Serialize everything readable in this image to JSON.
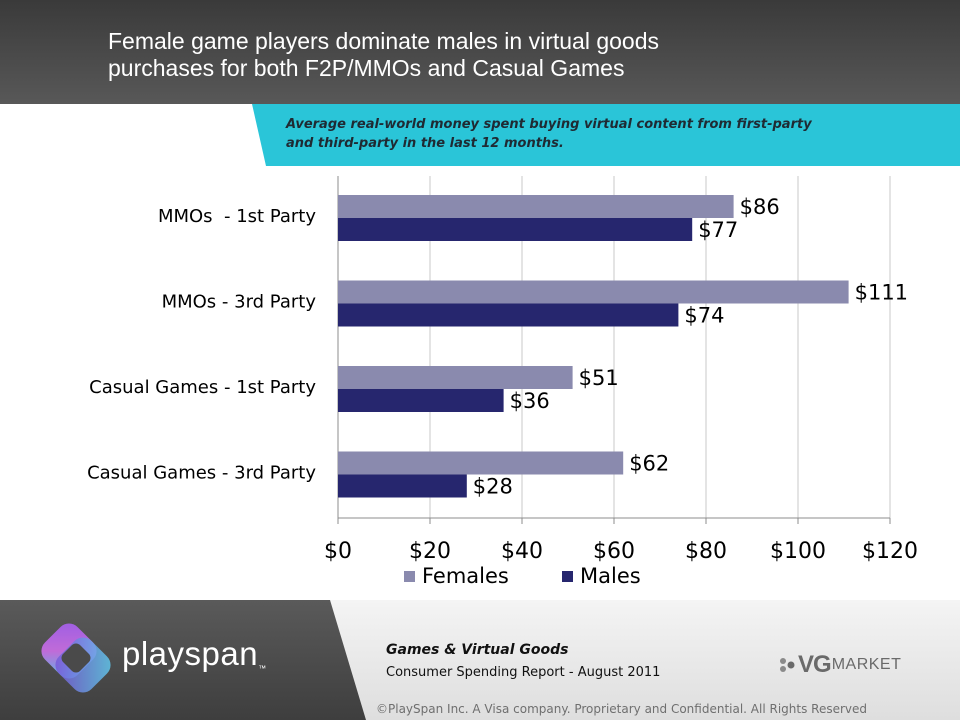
{
  "header": {
    "title_line1": "Female game players dominate males in virtual goods",
    "title_line2": "purchases for both F2P/MMOs and Casual Games"
  },
  "subtitle": {
    "line1": "Average real-world money spent buying virtual  content from first-party",
    "line2": "and third-party in the last 12 months."
  },
  "chart_data": {
    "type": "bar",
    "orientation": "horizontal",
    "categories": [
      "MMOs  - 1st Party",
      "MMOs - 3rd Party",
      "Casual Games - 1st Party",
      "Casual Games - 3rd Party"
    ],
    "series": [
      {
        "name": "Females",
        "color": "#8a8aae",
        "values": [
          86,
          111,
          51,
          62
        ],
        "labels": [
          "$86",
          "$111",
          "$51",
          "$62"
        ]
      },
      {
        "name": "Males",
        "color": "#26266e",
        "values": [
          77,
          74,
          36,
          28
        ],
        "labels": [
          "$77",
          "$74",
          "$36",
          "$28"
        ]
      }
    ],
    "xlim": [
      0,
      120
    ],
    "xticks": [
      0,
      20,
      40,
      60,
      80,
      100,
      120
    ],
    "xtick_labels": [
      "$0",
      "$20",
      "$40",
      "$60",
      "$80",
      "$100",
      "$120"
    ],
    "grid": true,
    "legend": "bottom"
  },
  "footer": {
    "brand": "playspan",
    "trademark": "™",
    "report_title": "Games & Virtual Goods",
    "report_subtitle": "Consumer Spending Report  - August 2011",
    "partner_logo_vg": "VG",
    "partner_logo_market": "MARKET",
    "copyright": "©PlaySpan Inc. A Visa company. Proprietary and Confidential. All Rights Reserved"
  },
  "colors": {
    "accent_cyan": "#2ac5d8",
    "header_dark": "#3a3a3a",
    "females": "#8a8aae",
    "males": "#26266e"
  }
}
